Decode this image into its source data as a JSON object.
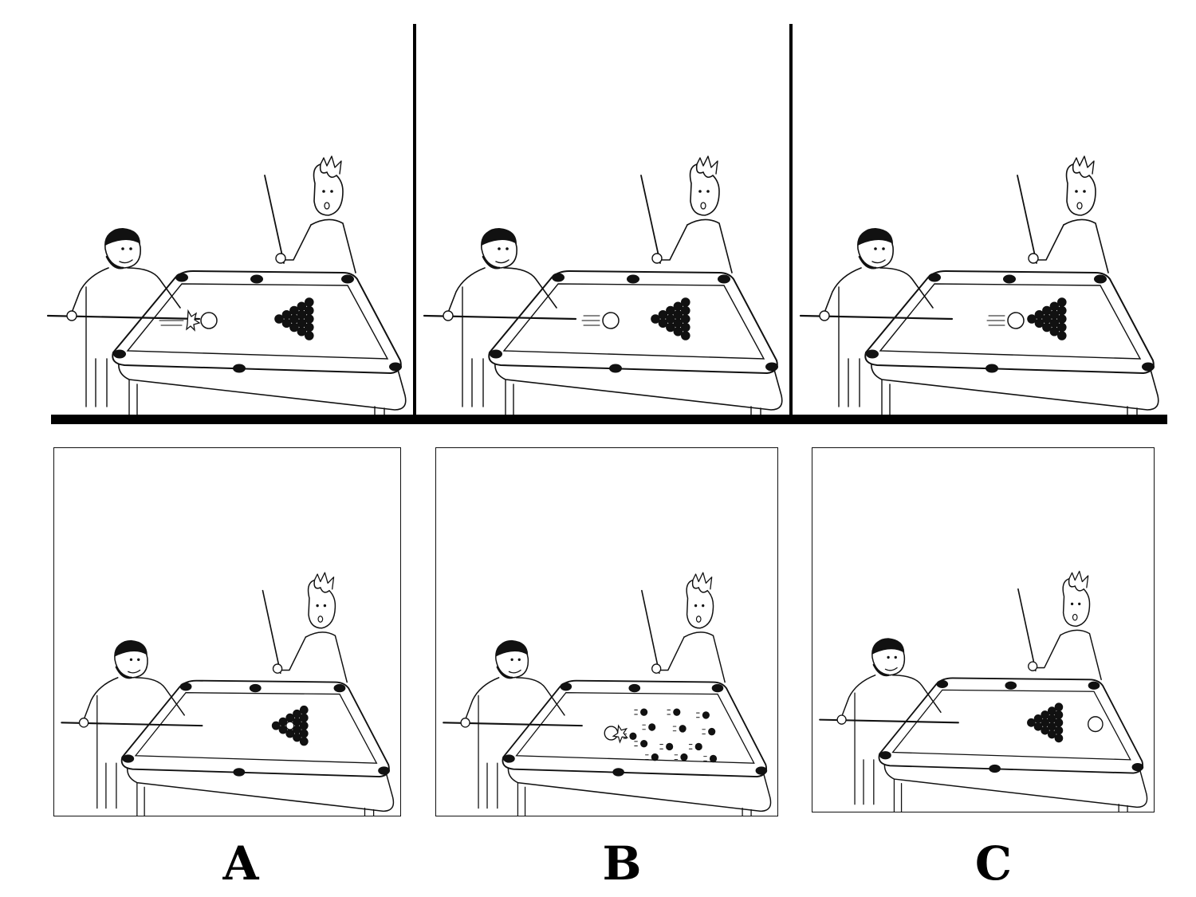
{
  "sequence": [
    {
      "id": "frame-1",
      "state": "cue-strikes-ball"
    },
    {
      "id": "frame-2",
      "state": "ball-rolling"
    },
    {
      "id": "frame-3",
      "state": "ball-reaches-rack"
    }
  ],
  "options": [
    {
      "label": "A",
      "state": "ball-stops-in-rack"
    },
    {
      "label": "B",
      "state": "rack-breaks-apart"
    },
    {
      "label": "C",
      "state": "ball-passes-through-rack"
    }
  ],
  "colors": {
    "ink": "#111111",
    "background": "#ffffff"
  }
}
